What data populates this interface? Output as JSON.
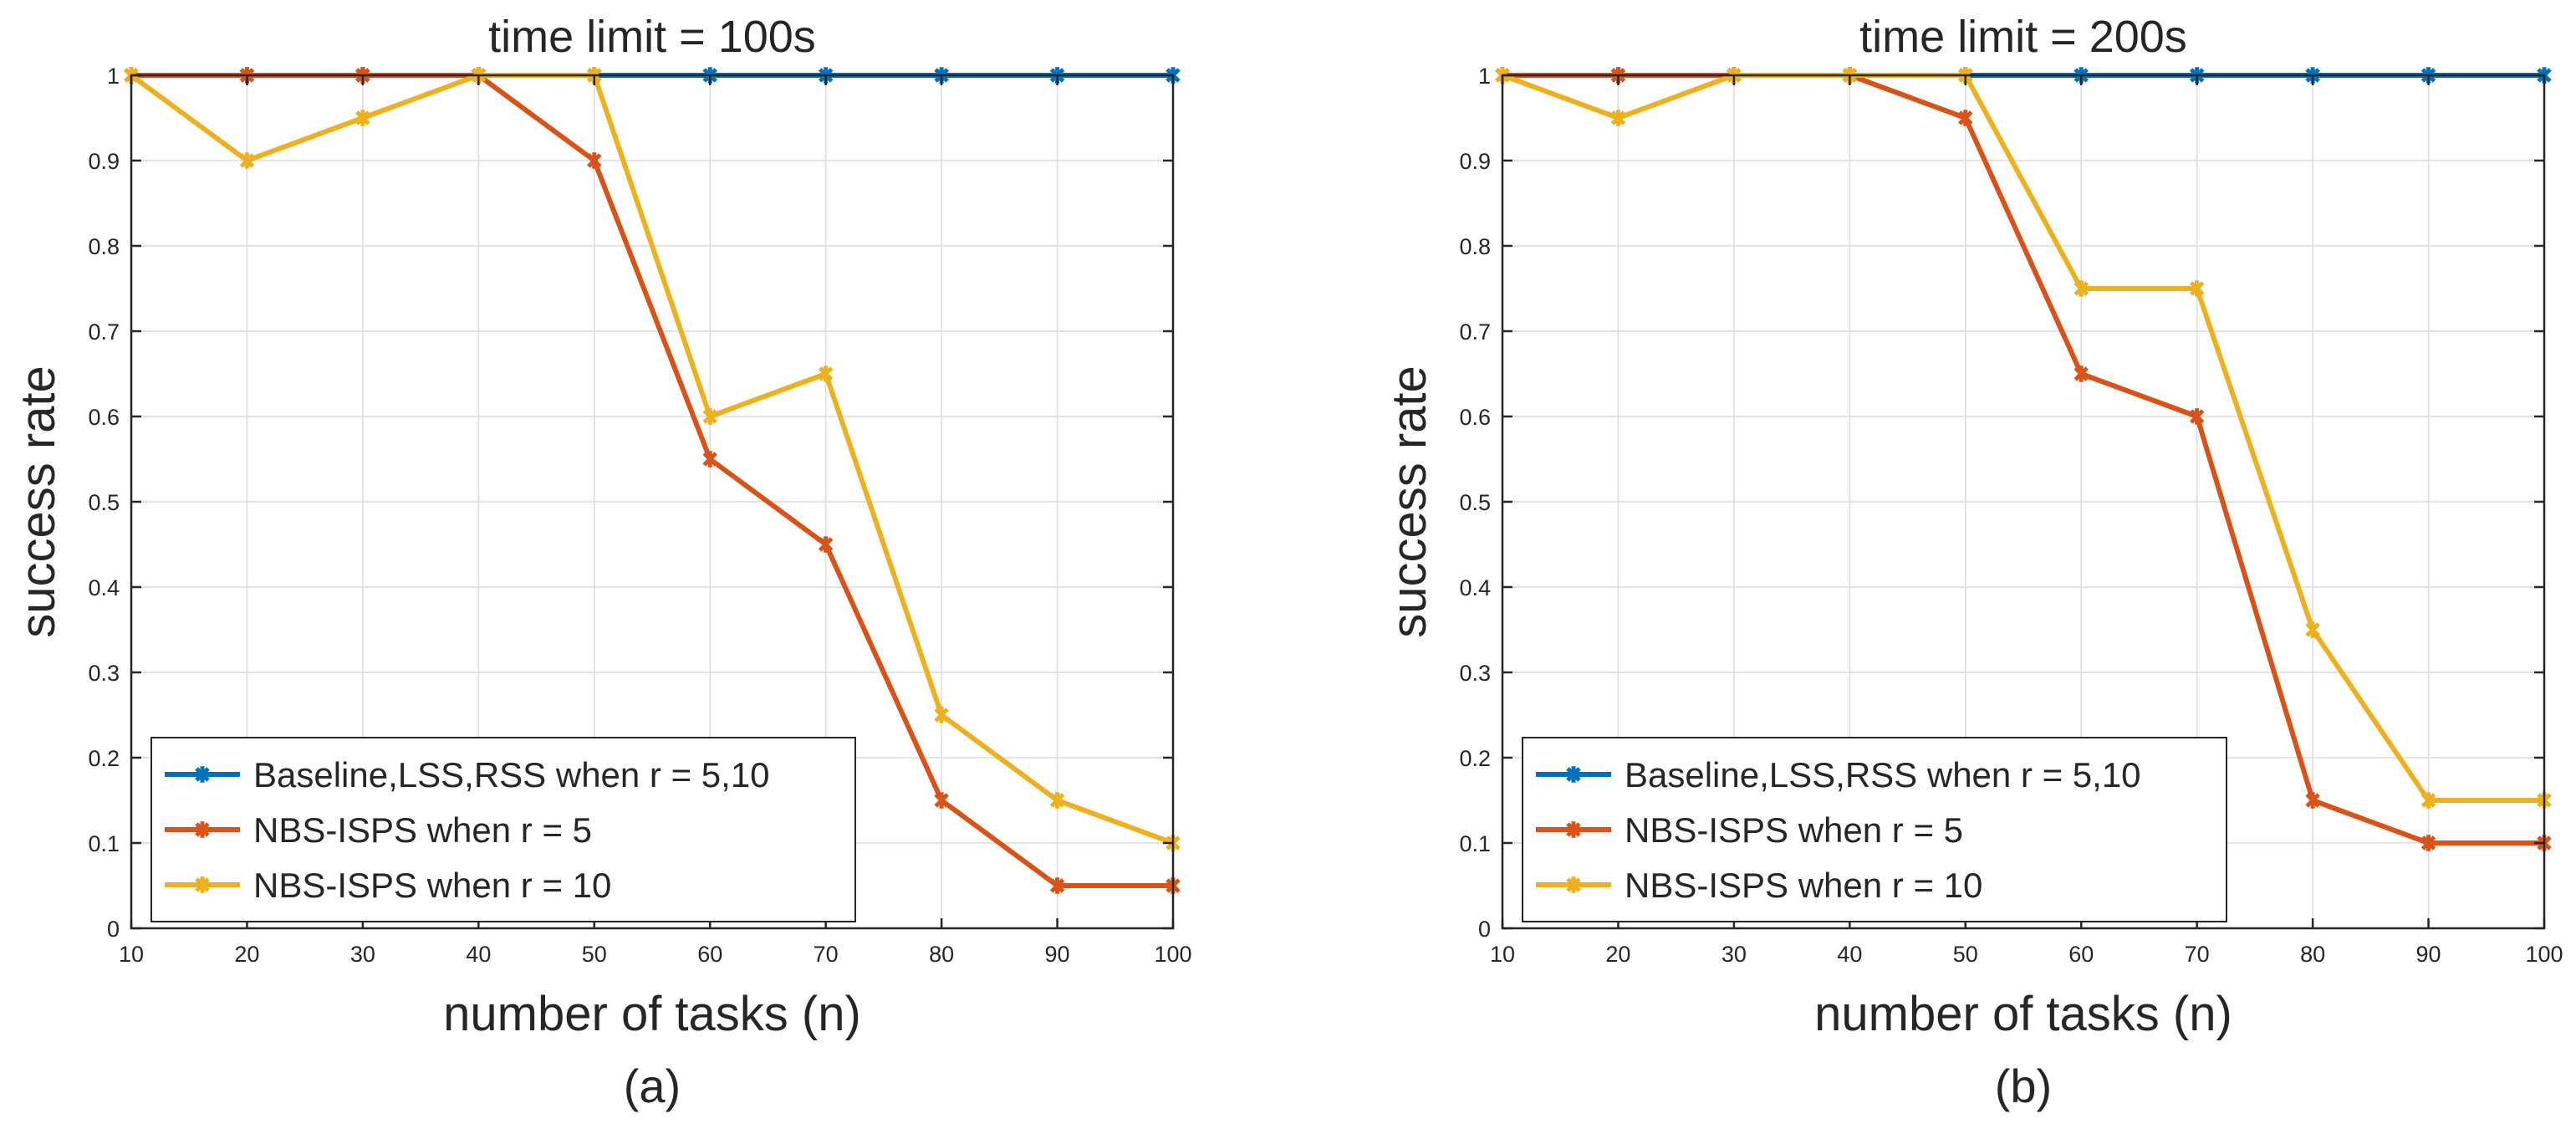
{
  "chart_data": [
    {
      "type": "line",
      "title": "time limit = 100s",
      "xlabel": "number of tasks (n)",
      "ylabel": "success rate",
      "caption": "(a)",
      "xlim": [
        10,
        100
      ],
      "ylim": [
        0,
        1
      ],
      "xticks": [
        "10",
        "20",
        "30",
        "40",
        "50",
        "60",
        "70",
        "80",
        "90",
        "100"
      ],
      "yticks": [
        "0",
        "0.1",
        "0.2",
        "0.3",
        "0.4",
        "0.5",
        "0.6",
        "0.7",
        "0.8",
        "0.9",
        "1"
      ],
      "grid": true,
      "legend_position": "bottom-left",
      "x": [
        10,
        20,
        30,
        40,
        50,
        60,
        70,
        80,
        90,
        100
      ],
      "series": [
        {
          "name": "Baseline,LSS,RSS when r = 5,10",
          "color": "#0072BD",
          "values": [
            1,
            1,
            1,
            1,
            1,
            1,
            1,
            1,
            1,
            1
          ]
        },
        {
          "name": "NBS-ISPS when r = 5",
          "color": "#D95319",
          "values": [
            1,
            1,
            1,
            1,
            0.9,
            0.55,
            0.45,
            0.15,
            0.05,
            0.05
          ]
        },
        {
          "name": "NBS-ISPS when r = 10",
          "color": "#EDB120",
          "values": [
            1,
            0.9,
            0.95,
            1,
            1,
            0.6,
            0.65,
            0.25,
            0.15,
            0.1
          ]
        }
      ]
    },
    {
      "type": "line",
      "title": "time limit = 200s",
      "xlabel": "number of tasks (n)",
      "ylabel": "success rate",
      "caption": "(b)",
      "xlim": [
        10,
        100
      ],
      "ylim": [
        0,
        1
      ],
      "xticks": [
        "10",
        "20",
        "30",
        "40",
        "50",
        "60",
        "70",
        "80",
        "90",
        "100"
      ],
      "yticks": [
        "0",
        "0.1",
        "0.2",
        "0.3",
        "0.4",
        "0.5",
        "0.6",
        "0.7",
        "0.8",
        "0.9",
        "1"
      ],
      "grid": true,
      "legend_position": "bottom-left",
      "x": [
        10,
        20,
        30,
        40,
        50,
        60,
        70,
        80,
        90,
        100
      ],
      "series": [
        {
          "name": "Baseline,LSS,RSS when r = 5,10",
          "color": "#0072BD",
          "values": [
            1,
            1,
            1,
            1,
            1,
            1,
            1,
            1,
            1,
            1
          ]
        },
        {
          "name": "NBS-ISPS when r = 5",
          "color": "#D95319",
          "values": [
            1,
            1,
            1,
            1,
            0.95,
            0.65,
            0.6,
            0.15,
            0.1,
            0.1
          ]
        },
        {
          "name": "NBS-ISPS when r = 10",
          "color": "#EDB120",
          "values": [
            1,
            0.95,
            1,
            1,
            1,
            0.75,
            0.75,
            0.35,
            0.15,
            0.15
          ]
        }
      ]
    }
  ]
}
